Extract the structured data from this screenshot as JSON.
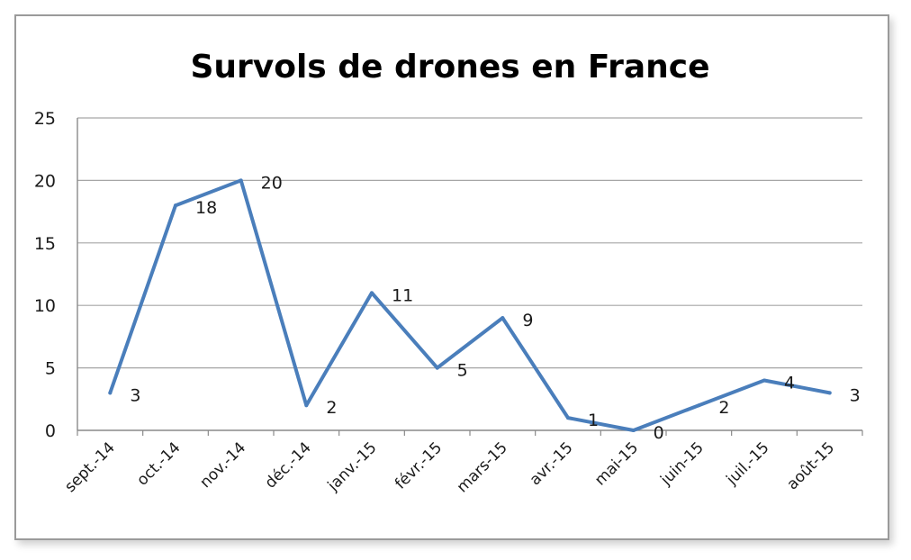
{
  "chart_data": {
    "type": "line",
    "title": "Survols de drones en France",
    "categories": [
      "sept.-14",
      "oct.-14",
      "nov.-14",
      "déc.-14",
      "janv.-15",
      "févr.-15",
      "mars-15",
      "avr.-15",
      "mai-15",
      "juin-15",
      "juil.-15",
      "août-15"
    ],
    "series": [
      {
        "values": [
          3,
          18,
          20,
          2,
          11,
          5,
          9,
          1,
          0,
          2,
          4,
          3
        ]
      }
    ],
    "y_ticks": [
      "0",
      "5",
      "10",
      "15",
      "20",
      "25"
    ],
    "ylim": [
      0,
      25
    ],
    "grid": true,
    "line_color": "#4a7ebb",
    "data_labels": true
  }
}
